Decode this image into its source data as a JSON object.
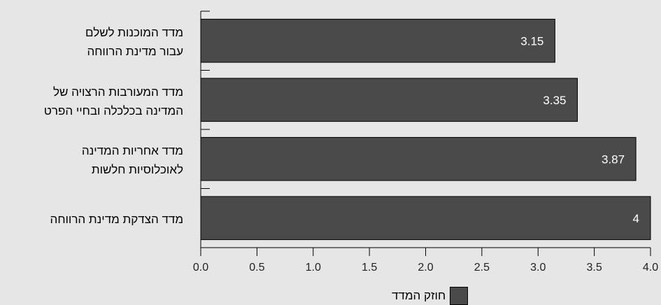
{
  "chart_data": {
    "type": "bar",
    "orientation": "horizontal",
    "categories": [
      "מדד המוכנות לשלם\nעבור מדינת הרווחה",
      "מדד המעורבות הרצויה של\nהמדינה בכלכלה ובחיי הפרט",
      "מדד אחריות המדינה\nלאוכלוסיות חלשות",
      "מדד הצדקת מדינת הרווחה"
    ],
    "series": [
      {
        "name": "חוזק המדד",
        "values": [
          3.15,
          3.35,
          3.87,
          4
        ]
      }
    ],
    "value_labels": [
      "3.15",
      "3.35",
      "3.87",
      "4"
    ],
    "xlim": [
      0,
      4
    ],
    "xticks": [
      "0.0",
      "0.5",
      "1.0",
      "1.5",
      "2.0",
      "2.5",
      "3.0",
      "3.5",
      "4.0"
    ],
    "grid": false,
    "legend_position": "bottom",
    "colors": {
      "bar": "#4a4a4a",
      "bar_border": "#000000",
      "background": "#e6e6e6"
    }
  }
}
